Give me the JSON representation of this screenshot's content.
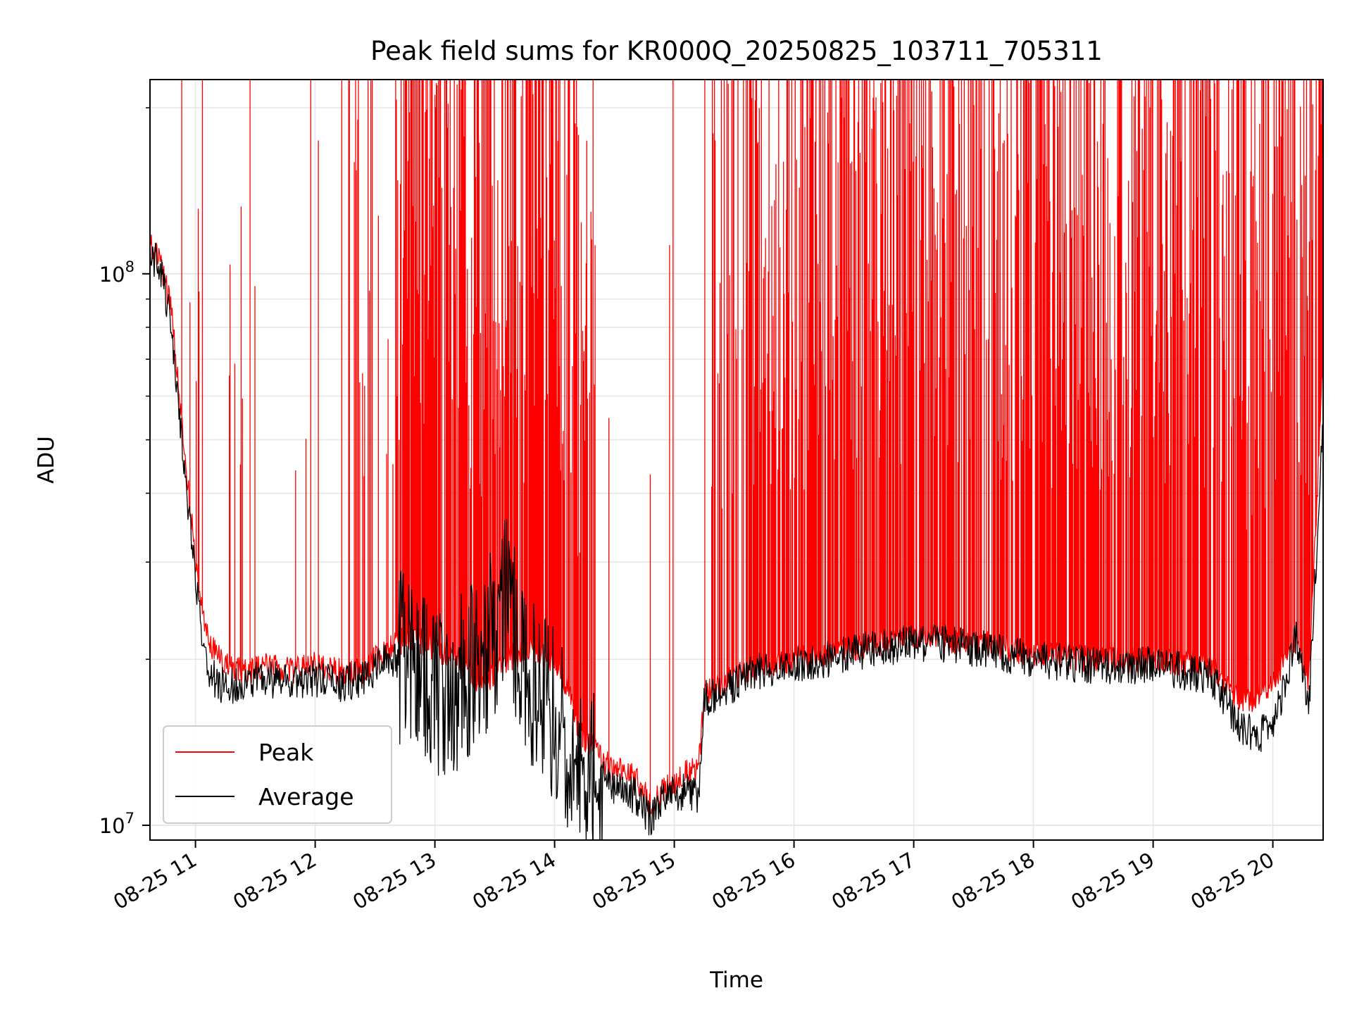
{
  "chart_data": {
    "type": "line",
    "title": "Peak field sums for KR000Q_20250825_103711_705311",
    "xlabel": "Time",
    "ylabel": "ADU",
    "yscale": "log",
    "xlim": [
      "2025-08-25 10:37",
      "2025-08-25 20:25"
    ],
    "ylim": [
      9400000,
      225000000
    ],
    "grid": true,
    "legend_position": "lower-left",
    "x_tick_labels": [
      "08-25 11",
      "08-25 12",
      "08-25 13",
      "08-25 14",
      "08-25 15",
      "08-25 16",
      "08-25 17",
      "08-25 18",
      "08-25 19",
      "08-25 20"
    ],
    "x_tick_hours": [
      11,
      12,
      13,
      14,
      15,
      16,
      17,
      18,
      19,
      20
    ],
    "y_ticks": [
      {
        "value": 10000000,
        "base": "10",
        "exp": "7"
      },
      {
        "value": 100000000,
        "base": "10",
        "exp": "8"
      }
    ],
    "series": [
      {
        "name": "Peak",
        "color": "#ff0000",
        "x_hours": [
          10.62,
          10.7,
          10.8,
          10.9,
          11.0,
          11.1,
          11.2,
          11.4,
          11.6,
          11.8,
          12.0,
          12.2,
          12.4,
          12.6,
          12.8,
          13.0,
          13.2,
          13.4,
          13.6,
          13.8,
          14.0,
          14.1,
          14.2,
          14.35,
          14.5,
          14.6,
          14.7,
          14.8,
          14.9,
          15.0,
          15.1,
          15.2,
          15.25,
          15.3,
          15.5,
          15.7,
          16.0,
          16.5,
          17.0,
          17.5,
          18.0,
          18.5,
          19.0,
          19.5,
          19.7,
          19.85,
          20.0,
          20.2,
          20.3,
          20.42
        ],
        "y": [
          112000000,
          108000000,
          85000000,
          50000000,
          30000000,
          22000000,
          20000000,
          19000000,
          19500000,
          19000000,
          19500000,
          19000000,
          19000000,
          21000000,
          22000000,
          21000000,
          20000000,
          18000000,
          20000000,
          21000000,
          20000000,
          18000000,
          15000000,
          13500000,
          12500000,
          12500000,
          12000000,
          11000000,
          11500000,
          12000000,
          12500000,
          12500000,
          17000000,
          17500000,
          18500000,
          19500000,
          20000000,
          21000000,
          22000000,
          21500000,
          20500000,
          20000000,
          20000000,
          19500000,
          17000000,
          17000000,
          18000000,
          22000000,
          18000000,
          70000000
        ]
      },
      {
        "name": "Average",
        "color": "#000000",
        "x_hours": [
          10.62,
          10.7,
          10.8,
          10.9,
          11.0,
          11.1,
          11.2,
          11.4,
          11.6,
          11.8,
          12.0,
          12.2,
          12.4,
          12.6,
          12.8,
          13.0,
          13.2,
          13.4,
          13.6,
          13.8,
          14.0,
          14.1,
          14.2,
          14.35,
          14.5,
          14.6,
          14.7,
          14.8,
          14.9,
          15.0,
          15.1,
          15.2,
          15.25,
          15.3,
          15.5,
          15.7,
          16.0,
          16.5,
          17.0,
          17.5,
          18.0,
          18.5,
          19.0,
          19.5,
          19.7,
          19.85,
          20.0,
          20.2,
          20.3,
          20.42
        ],
        "y": [
          108000000,
          104000000,
          80000000,
          45000000,
          28000000,
          19000000,
          18000000,
          18000000,
          18500000,
          18000000,
          18500000,
          18000000,
          18500000,
          20000000,
          20000000,
          17000000,
          18000000,
          20000000,
          26000000,
          18000000,
          16000000,
          14000000,
          13000000,
          12500000,
          11500000,
          11500000,
          11200000,
          10200000,
          11000000,
          11500000,
          11500000,
          11300000,
          17000000,
          17000000,
          18000000,
          19000000,
          19500000,
          20500000,
          21500000,
          21000000,
          20000000,
          19500000,
          19500000,
          18500000,
          15500000,
          14500000,
          15000000,
          22000000,
          16000000,
          55000000
        ]
      }
    ]
  }
}
